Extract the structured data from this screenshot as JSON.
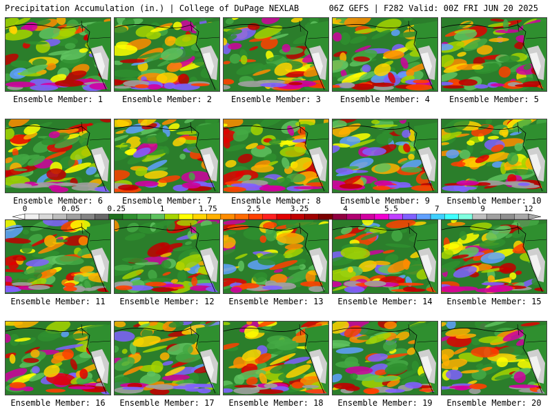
{
  "header": {
    "left": "Precipitation Accumulation (in.) | College of DuPage NEXLAB",
    "right": "06Z GEFS | F282 Valid: 00Z FRI JUN 20 2025"
  },
  "colors": {
    "background": "#ffffff",
    "ocean_low": "#2b7e2b",
    "land_dry": "#c8c8c8"
  },
  "colorbar": {
    "tick_labels": [
      "0",
      "0.05",
      "0.25",
      "1",
      "1.75",
      "2.5",
      "3.25",
      "4",
      "5.5",
      "7",
      "9",
      "12"
    ],
    "colors": [
      "#f0f0f0",
      "#d8d8d8",
      "#bdbdbd",
      "#a0a0a0",
      "#848484",
      "#686868",
      "#1e6e1e",
      "#2f8f2f",
      "#44a944",
      "#5fc25f",
      "#a6d400",
      "#ffff00",
      "#ffd400",
      "#ffb000",
      "#ff8c00",
      "#ff6a00",
      "#ff4000",
      "#ff2020",
      "#e00000",
      "#c00000",
      "#a00000",
      "#7a0000",
      "#900040",
      "#b00070",
      "#d000a0",
      "#f000d0",
      "#c040ff",
      "#8060ff",
      "#60a0ff",
      "#40d0ff",
      "#40ffff",
      "#80ffe0",
      "#c0c0c0",
      "#a0a0a0",
      "#909090",
      "#a8a8a8"
    ]
  },
  "chart_data": {
    "type": "heatmap",
    "title": "Precipitation Accumulation (in.)",
    "source": "College of DuPage NEXLAB",
    "model": "06Z GEFS",
    "forecast_hour": "F282",
    "valid": "00Z FRI JUN 20 2025",
    "color_scale_ticks": [
      0,
      0.05,
      0.25,
      1,
      1.75,
      2.5,
      3.25,
      4,
      5.5,
      7,
      9,
      12
    ],
    "panels": [
      {
        "label": "Ensemble Member: 1"
      },
      {
        "label": "Ensemble Member: 2"
      },
      {
        "label": "Ensemble Member: 3"
      },
      {
        "label": "Ensemble Member: 4"
      },
      {
        "label": "Ensemble Member: 5"
      },
      {
        "label": "Ensemble Member: 6"
      },
      {
        "label": "Ensemble Member: 7"
      },
      {
        "label": "Ensemble Member: 8"
      },
      {
        "label": "Ensemble Member: 9"
      },
      {
        "label": "Ensemble Member: 10"
      },
      {
        "label": "Ensemble Member: 11"
      },
      {
        "label": "Ensemble Member: 12"
      },
      {
        "label": "Ensemble Member: 13"
      },
      {
        "label": "Ensemble Member: 14"
      },
      {
        "label": "Ensemble Member: 15"
      },
      {
        "label": "Ensemble Member: 16"
      },
      {
        "label": "Ensemble Member: 17"
      },
      {
        "label": "Ensemble Member: 18"
      },
      {
        "label": "Ensemble Member: 19"
      },
      {
        "label": "Ensemble Member: 20"
      }
    ]
  }
}
